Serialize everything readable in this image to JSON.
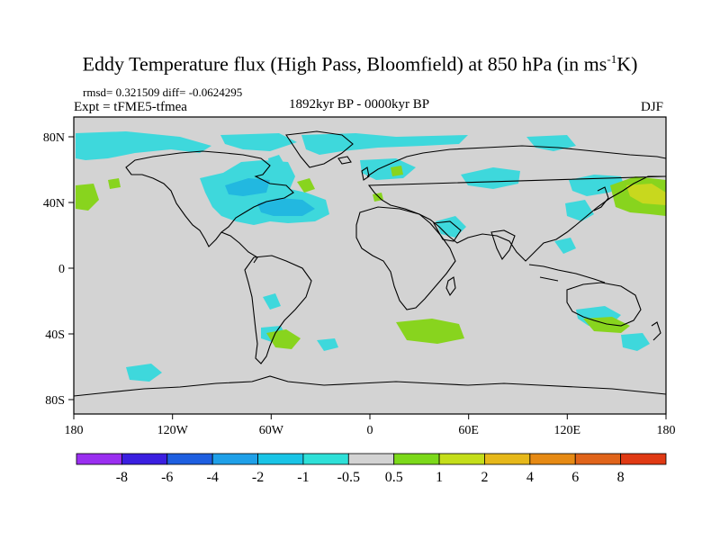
{
  "title": {
    "main": "Eddy Temperature flux (High Pass, Bloomfield) at 850 hPa (in ms",
    "sup": "-1",
    "tail": "K)"
  },
  "stats": "rmsd= 0.321509 diff= -0.0624295",
  "experiment": "Expt = tFME5-tfmea",
  "period": "1892kyr BP - 0000kyr BP",
  "season": "DJF",
  "map": {
    "lat_labels": [
      "80N",
      "40N",
      "0",
      "40S",
      "80S"
    ],
    "lon_labels": [
      "180",
      "120W",
      "60W",
      "0",
      "60E",
      "120E",
      "180"
    ],
    "background_color": "#d3d3d3"
  },
  "colorbar": {
    "labels": [
      "-8",
      "-6",
      "-4",
      "-2",
      "-1",
      "-0.5",
      "0.5",
      "1",
      "2",
      "4",
      "6",
      "8"
    ],
    "colors": [
      "#9a2ff0",
      "#3b1fe0",
      "#1e5fe0",
      "#1fa0e8",
      "#19c4e6",
      "#2ee0d8",
      "#d3d3d3",
      "#7cd91a",
      "#c4de1a",
      "#e6b81a",
      "#e68a14",
      "#e0641a",
      "#e03a14"
    ]
  },
  "anomalies": {
    "negative_color": "#3ed8dc",
    "negative_strong_color": "#22b8e0",
    "positive_color": "#88d41e",
    "positive_strong_color": "#c8d81e"
  }
}
